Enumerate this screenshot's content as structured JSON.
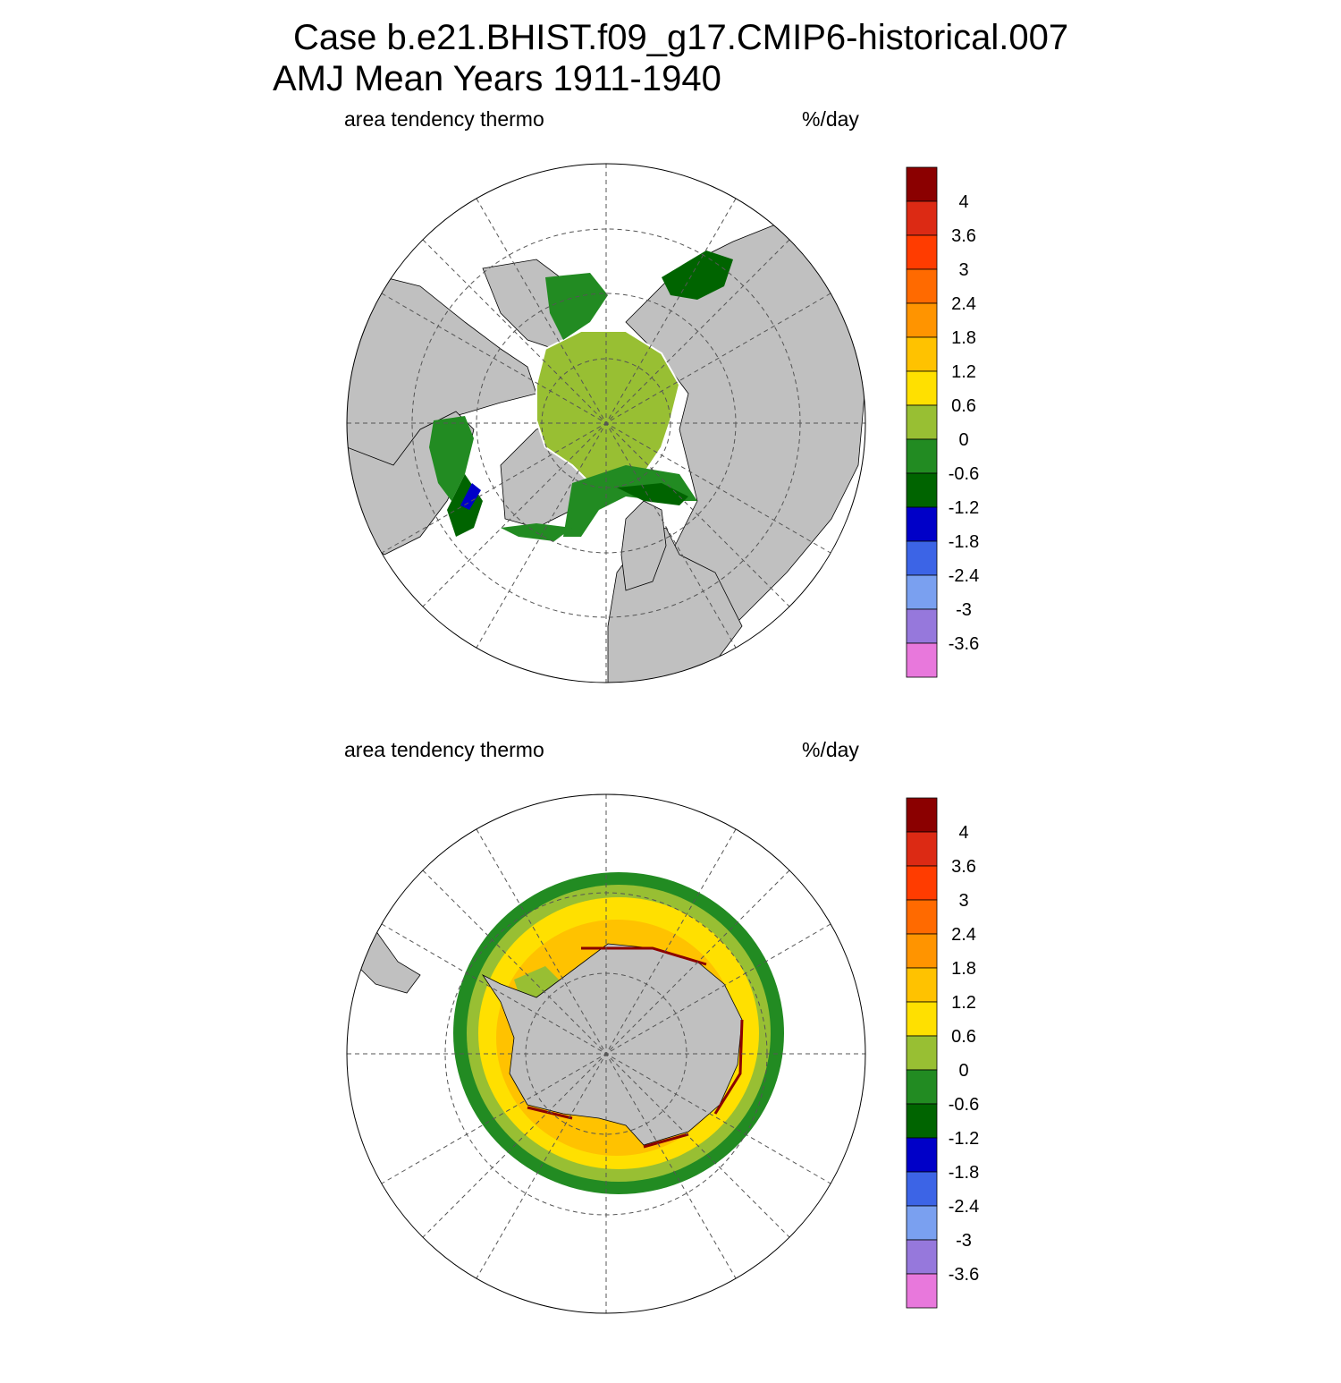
{
  "title": {
    "line1": "Case b.e21.BHIST.f09_g17.CMIP6-historical.007",
    "line2": "AMJ Mean   Years 1911-1940"
  },
  "panels": [
    {
      "hemisphere": "north",
      "left_label": "area tendency thermo",
      "right_label": "%/day"
    },
    {
      "hemisphere": "south",
      "left_label": "area tendency thermo",
      "right_label": "%/day"
    }
  ],
  "colorbar": {
    "labels": [
      "4",
      "3.6",
      "3",
      "2.4",
      "1.8",
      "1.2",
      "0.6",
      "0",
      "-0.6",
      "-1.2",
      "-1.8",
      "-2.4",
      "-3",
      "-3.6"
    ],
    "colors": [
      "#8b0000",
      "#dc2a14",
      "#ff3c00",
      "#ff6a00",
      "#ff9400",
      "#ffc200",
      "#ffe000",
      "#98bf33",
      "#228b22",
      "#006400",
      "#0000c8",
      "#3c64e6",
      "#7aa0f0",
      "#9678dc",
      "#e878dc"
    ]
  },
  "colors": {
    "land": "#c0c0c0",
    "ocean": "#ffffff",
    "grid": "#555555"
  }
}
